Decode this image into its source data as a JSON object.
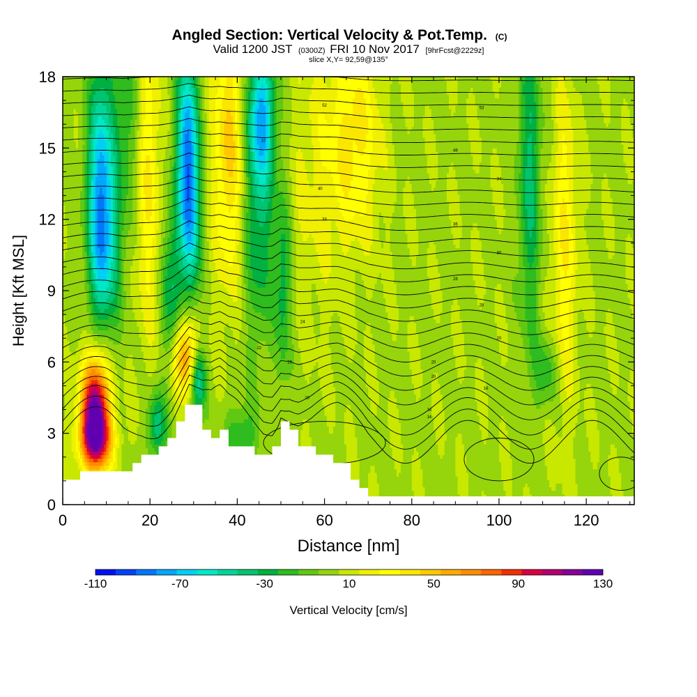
{
  "chart_data": {
    "type": "heatmap",
    "title": "Angled Section: Vertical Velocity & Pot.Temp.",
    "title_mark": "(C)",
    "subtitle_main": "Valid 1200 JST",
    "subtitle_utc": "(0300Z)",
    "subtitle_date": "FRI 10 Nov 2017",
    "subtitle_fcst": "[9hrFcst@2229z]",
    "slice_label": "slice X,Y= 92,59@135°",
    "xlabel": "Distance [nm]",
    "ylabel": "Height [Kft MSL]",
    "xlim": [
      0,
      131
    ],
    "ylim": [
      0,
      18
    ],
    "x_ticks": [
      "0",
      "20",
      "40",
      "60",
      "80",
      "100",
      "120"
    ],
    "y_ticks": [
      "0",
      "3",
      "6",
      "9",
      "12",
      "15",
      "18"
    ],
    "colorbar": {
      "label": "Vertical Velocity [cm/s]",
      "min": -110,
      "max": 130,
      "step": 10,
      "tick_labels": [
        "-110",
        "-70",
        "-30",
        "10",
        "50",
        "90",
        "130"
      ],
      "colors": [
        "#0010f0",
        "#0044f6",
        "#0078fa",
        "#00a8fc",
        "#00d0f4",
        "#00e8c8",
        "#00d69a",
        "#00c470",
        "#00b040",
        "#2ebc1e",
        "#60c812",
        "#96d40c",
        "#c8e800",
        "#f0f000",
        "#ffff00",
        "#fbe600",
        "#ffc800",
        "#ffaa00",
        "#ff8c00",
        "#ff6400",
        "#f03000",
        "#d80040",
        "#b00070",
        "#880098",
        "#6000b0"
      ]
    },
    "terrain": {
      "x": [
        0,
        5,
        10,
        14,
        18,
        22,
        25,
        27,
        29,
        30,
        32,
        34,
        36,
        38,
        40,
        43,
        46,
        48,
        50,
        52,
        54,
        57,
        60,
        63,
        66,
        70,
        75,
        80,
        131
      ],
      "height": [
        1.0,
        1.3,
        1.5,
        1.3,
        2.0,
        2.3,
        3.0,
        3.8,
        4.6,
        4.1,
        3.2,
        2.8,
        3.1,
        2.6,
        2.6,
        2.3,
        2.0,
        2.3,
        3.5,
        3.3,
        2.6,
        2.2,
        2.0,
        1.8,
        1.2,
        0.5,
        0.35,
        0.35,
        0.35
      ]
    },
    "velocity_features": [
      {
        "x": 7.5,
        "z": 4.0,
        "w": 128,
        "sx": 2.2,
        "sz": 1.6
      },
      {
        "x": 7.5,
        "z": 2.7,
        "w": 55,
        "sx": 3.0,
        "sz": 0.8
      },
      {
        "x": 28,
        "z": 6.3,
        "w": 70,
        "sx": 2.0,
        "sz": 1.2
      },
      {
        "x": 19.5,
        "z": 14,
        "w": 35,
        "sx": 2.0,
        "sz": 4.5
      },
      {
        "x": 38,
        "z": 15,
        "w": 45,
        "sx": 2.5,
        "sz": 4.0
      },
      {
        "x": 67,
        "z": 15.5,
        "w": 35,
        "sx": 4.0,
        "sz": 3.0
      },
      {
        "x": 115,
        "z": 11,
        "w": 32,
        "sx": 2.0,
        "sz": 4.5
      },
      {
        "x": 58,
        "z": 14,
        "w": 15,
        "sx": 5.0,
        "sz": 4.0
      },
      {
        "x": 8.5,
        "z": 13.5,
        "w": -72,
        "sx": 2.0,
        "sz": 3.5
      },
      {
        "x": 10,
        "z": 10.5,
        "w": -40,
        "sx": 2.5,
        "sz": 2.5
      },
      {
        "x": 28.5,
        "z": 15,
        "w": -85,
        "sx": 1.7,
        "sz": 3.0
      },
      {
        "x": 29.5,
        "z": 11.5,
        "w": -45,
        "sx": 1.5,
        "sz": 2.5
      },
      {
        "x": 25,
        "z": 9,
        "w": -40,
        "sx": 1.6,
        "sz": 2.5
      },
      {
        "x": 31,
        "z": 5.2,
        "w": -60,
        "sx": 1.2,
        "sz": 1.0
      },
      {
        "x": 21.5,
        "z": 3.3,
        "w": -45,
        "sx": 1.5,
        "sz": 1.0
      },
      {
        "x": 45.5,
        "z": 16.5,
        "w": -70,
        "sx": 2.2,
        "sz": 2.0
      },
      {
        "x": 45,
        "z": 12,
        "w": -40,
        "sx": 2.5,
        "sz": 3.5
      },
      {
        "x": 50.5,
        "z": 9.5,
        "w": -35,
        "sx": 1.3,
        "sz": 3.0
      },
      {
        "x": 41,
        "z": 2.8,
        "w": -30,
        "sx": 2.5,
        "sz": 1.0
      },
      {
        "x": 107,
        "z": 14,
        "w": -40,
        "sx": 1.8,
        "sz": 5.0
      },
      {
        "x": 111,
        "z": 5.6,
        "w": -25,
        "sx": 2.0,
        "sz": 1.0
      },
      {
        "x": 14,
        "z": 16,
        "w": -25,
        "sx": 3.0,
        "sz": 3.0
      }
    ],
    "theta_contours": {
      "levels_C": [
        14,
        16,
        18,
        20,
        22,
        24,
        26,
        28,
        30,
        32,
        34,
        36,
        38,
        40,
        42,
        44,
        46,
        48,
        50,
        52,
        54,
        56,
        58,
        60,
        62,
        64,
        66,
        68,
        70,
        72
      ],
      "label_points": [
        {
          "x": 96,
          "z": 16.7,
          "text": "53"
        },
        {
          "x": 60,
          "z": 16.8,
          "text": "52"
        },
        {
          "x": 90,
          "z": 14.9,
          "text": "48"
        },
        {
          "x": 100,
          "z": 13.7,
          "text": "34"
        },
        {
          "x": 46,
          "z": 15.3,
          "text": "37"
        },
        {
          "x": 59,
          "z": 13.3,
          "text": "40"
        },
        {
          "x": 90,
          "z": 11.8,
          "text": "36"
        },
        {
          "x": 60,
          "z": 12.0,
          "text": "33"
        },
        {
          "x": 90,
          "z": 9.5,
          "text": "28"
        },
        {
          "x": 100,
          "z": 10.6,
          "text": "30"
        },
        {
          "x": 96,
          "z": 8.4,
          "text": "28"
        },
        {
          "x": 100,
          "z": 7.0,
          "text": "20"
        },
        {
          "x": 55,
          "z": 7.7,
          "text": "24"
        },
        {
          "x": 45,
          "z": 6.6,
          "text": "22"
        },
        {
          "x": 85,
          "z": 6.0,
          "text": "20"
        },
        {
          "x": 52,
          "z": 6.0,
          "text": "18"
        },
        {
          "x": 85,
          "z": 5.4,
          "text": "20"
        },
        {
          "x": 97,
          "z": 4.9,
          "text": "16"
        },
        {
          "x": 56,
          "z": 4.5,
          "text": "16"
        },
        {
          "x": 84,
          "z": 4.0,
          "text": "14"
        },
        {
          "x": 84,
          "z": 3.7,
          "text": "14"
        }
      ]
    }
  }
}
